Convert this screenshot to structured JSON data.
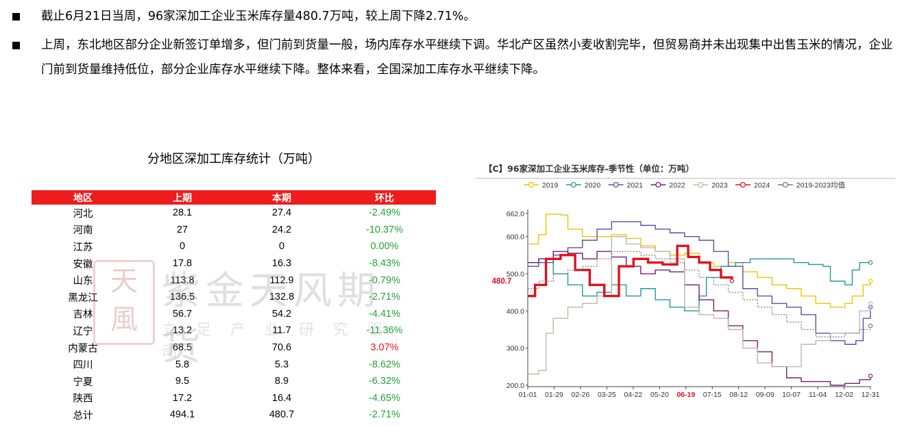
{
  "bullets": [
    "截止6月21日当周，96家深加工企业玉米库存量480.7万吨，较上周下降2.71%。",
    "上周，东北地区部分企业新签订单增多，但门前到货量一般，场内库存水平继续下调。华北产区虽然小麦收割完毕，但贸易商并未出现集中出售玉米的情况，企业门前到货量维持低位，部分企业库存水平继续下降。整体来看，全国深加工库存水平继续下降。"
  ],
  "table": {
    "title": "分地区深加工库存统计（万吨）",
    "headers": [
      "地区",
      "上期",
      "本期",
      "环比"
    ],
    "rows": [
      {
        "region": "河北",
        "prev": "28.1",
        "curr": "27.4",
        "chg": "-2.49%"
      },
      {
        "region": "河南",
        "prev": "27",
        "curr": "24.2",
        "chg": "-10.37%"
      },
      {
        "region": "江苏",
        "prev": "0",
        "curr": "0",
        "chg": "0.00%"
      },
      {
        "region": "安徽",
        "prev": "17.8",
        "curr": "16.3",
        "chg": "-8.43%"
      },
      {
        "region": "山东",
        "prev": "113.8",
        "curr": "112.9",
        "chg": "-0.79%"
      },
      {
        "region": "黑龙江",
        "prev": "136.5",
        "curr": "132.8",
        "chg": "-2.71%"
      },
      {
        "region": "吉林",
        "prev": "56.7",
        "curr": "54.2",
        "chg": "-4.41%"
      },
      {
        "region": "辽宁",
        "prev": "13.2",
        "curr": "11.7",
        "chg": "-11.36%"
      },
      {
        "region": "内蒙古",
        "prev": "68.5",
        "curr": "70.6",
        "chg": "3.07%"
      },
      {
        "region": "四川",
        "prev": "5.8",
        "curr": "5.3",
        "chg": "-8.62%"
      },
      {
        "region": "宁夏",
        "prev": "9.5",
        "curr": "8.9",
        "chg": "-6.32%"
      },
      {
        "region": "陕西",
        "prev": "17.2",
        "curr": "16.4",
        "chg": "-4.65%"
      },
      {
        "region": "总计",
        "prev": "494.1",
        "curr": "480.7",
        "chg": "-2.71%"
      }
    ],
    "colors": {
      "header_bg": "#ee1c1c",
      "negative": "#21a336",
      "positive": "#e8111b"
    }
  },
  "watermark": {
    "seal": "天风",
    "main": "紫金天风期货",
    "sub": "立足产业研究驱动"
  },
  "chart_data": {
    "type": "line",
    "title": "【C】96家深加工企业玉米库存-季节性（单位：万吨）",
    "xlabel": "",
    "ylabel": "",
    "x_ticks": [
      "01-01",
      "01-29",
      "02-26",
      "03-25",
      "04-22",
      "05-20",
      "06-19",
      "07-15",
      "08-12",
      "09-09",
      "10-07",
      "11-04",
      "12-02",
      "12-31"
    ],
    "highlight_tick": "06-19",
    "y_ticks": [
      "662.0",
      "600.0",
      "500.0",
      "400.0",
      "300.0",
      "200.0"
    ],
    "ylim": [
      200,
      662
    ],
    "callout": "480.7",
    "grid": false,
    "legend_position": "top",
    "series": [
      {
        "name": "2019",
        "color": "#f2c200",
        "dashed": false,
        "width": 1.4,
        "points": [
          [
            1,
            580
          ],
          [
            4,
            605
          ],
          [
            6,
            660
          ],
          [
            10,
            658
          ],
          [
            12,
            620
          ],
          [
            16,
            600
          ],
          [
            20,
            600
          ],
          [
            24,
            605
          ],
          [
            28,
            595
          ],
          [
            32,
            575
          ],
          [
            36,
            560
          ],
          [
            40,
            550
          ],
          [
            44,
            555
          ],
          [
            48,
            530
          ],
          [
            52,
            520
          ],
          [
            56,
            530
          ],
          [
            60,
            505
          ],
          [
            64,
            490
          ],
          [
            68,
            470
          ],
          [
            72,
            460
          ],
          [
            76,
            440
          ],
          [
            80,
            420
          ],
          [
            84,
            410
          ],
          [
            88,
            420
          ],
          [
            90,
            440
          ],
          [
            93,
            470
          ],
          [
            95,
            480
          ]
        ]
      },
      {
        "name": "2020",
        "color": "#1e9a96",
        "dashed": false,
        "width": 1.4,
        "points": [
          [
            1,
            530
          ],
          [
            4,
            540
          ],
          [
            8,
            500
          ],
          [
            12,
            470
          ],
          [
            16,
            440
          ],
          [
            20,
            450
          ],
          [
            24,
            470
          ],
          [
            28,
            440
          ],
          [
            32,
            460
          ],
          [
            36,
            430
          ],
          [
            40,
            410
          ],
          [
            44,
            400
          ],
          [
            48,
            440
          ],
          [
            50,
            490
          ],
          [
            54,
            520
          ],
          [
            58,
            530
          ],
          [
            62,
            540
          ],
          [
            66,
            540
          ],
          [
            70,
            540
          ],
          [
            74,
            530
          ],
          [
            78,
            525
          ],
          [
            82,
            520
          ],
          [
            84,
            480
          ],
          [
            88,
            470
          ],
          [
            90,
            510
          ],
          [
            92,
            530
          ],
          [
            95,
            530
          ]
        ]
      },
      {
        "name": "2021",
        "color": "#5b4ea8",
        "dashed": false,
        "width": 1.4,
        "points": [
          [
            1,
            520
          ],
          [
            4,
            530
          ],
          [
            8,
            550
          ],
          [
            12,
            570
          ],
          [
            16,
            590
          ],
          [
            20,
            620
          ],
          [
            24,
            640
          ],
          [
            28,
            640
          ],
          [
            32,
            630
          ],
          [
            36,
            620
          ],
          [
            40,
            610
          ],
          [
            44,
            600
          ],
          [
            48,
            590
          ],
          [
            52,
            560
          ],
          [
            56,
            520
          ],
          [
            60,
            460
          ],
          [
            64,
            440
          ],
          [
            68,
            420
          ],
          [
            72,
            410
          ],
          [
            76,
            390
          ],
          [
            80,
            340
          ],
          [
            84,
            320
          ],
          [
            88,
            310
          ],
          [
            91,
            320
          ],
          [
            93,
            380
          ],
          [
            95,
            410
          ]
        ]
      },
      {
        "name": "2022",
        "color": "#7a1a6a",
        "dashed": false,
        "width": 1.4,
        "points": [
          [
            1,
            530
          ],
          [
            4,
            540
          ],
          [
            8,
            560
          ],
          [
            12,
            555
          ],
          [
            16,
            540
          ],
          [
            20,
            560
          ],
          [
            24,
            545
          ],
          [
            28,
            520
          ],
          [
            32,
            500
          ],
          [
            36,
            510
          ],
          [
            40,
            505
          ],
          [
            44,
            470
          ],
          [
            48,
            430
          ],
          [
            52,
            400
          ],
          [
            56,
            360
          ],
          [
            60,
            320
          ],
          [
            64,
            290
          ],
          [
            68,
            250
          ],
          [
            72,
            220
          ],
          [
            76,
            210
          ],
          [
            80,
            210
          ],
          [
            84,
            200
          ],
          [
            88,
            205
          ],
          [
            92,
            215
          ],
          [
            95,
            225
          ]
        ]
      },
      {
        "name": "2023",
        "color": "#bdb5ad",
        "dashed": false,
        "width": 1.4,
        "points": [
          [
            1,
            230
          ],
          [
            4,
            240
          ],
          [
            6,
            340
          ],
          [
            8,
            380
          ],
          [
            12,
            410
          ],
          [
            16,
            420
          ],
          [
            20,
            440
          ],
          [
            24,
            600
          ],
          [
            28,
            580
          ],
          [
            32,
            570
          ],
          [
            36,
            560
          ],
          [
            40,
            540
          ],
          [
            44,
            410
          ],
          [
            48,
            390
          ],
          [
            52,
            380
          ],
          [
            56,
            350
          ],
          [
            60,
            300
          ],
          [
            64,
            260
          ],
          [
            68,
            250
          ],
          [
            72,
            250
          ],
          [
            76,
            310
          ],
          [
            80,
            320
          ],
          [
            84,
            340
          ],
          [
            88,
            340
          ],
          [
            92,
            400
          ],
          [
            95,
            420
          ]
        ]
      },
      {
        "name": "2024",
        "color": "#e0101e",
        "dashed": false,
        "width": 3.4,
        "points": [
          [
            1,
            440
          ],
          [
            3,
            470
          ],
          [
            6,
            540
          ],
          [
            10,
            550
          ],
          [
            14,
            510
          ],
          [
            18,
            470
          ],
          [
            22,
            440
          ],
          [
            26,
            520
          ],
          [
            30,
            540
          ],
          [
            34,
            530
          ],
          [
            38,
            525
          ],
          [
            42,
            575
          ],
          [
            45,
            545
          ],
          [
            48,
            530
          ],
          [
            51,
            510
          ],
          [
            54,
            490
          ],
          [
            57,
            480.7
          ]
        ]
      },
      {
        "name": "2019-2023均值",
        "color": "#777777",
        "dashed": true,
        "width": 1.2,
        "points": [
          [
            1,
            460
          ],
          [
            4,
            480
          ],
          [
            8,
            500
          ],
          [
            12,
            510
          ],
          [
            16,
            520
          ],
          [
            20,
            540
          ],
          [
            24,
            560
          ],
          [
            28,
            560
          ],
          [
            32,
            550
          ],
          [
            36,
            540
          ],
          [
            40,
            530
          ],
          [
            44,
            510
          ],
          [
            48,
            490
          ],
          [
            52,
            470
          ],
          [
            56,
            450
          ],
          [
            60,
            430
          ],
          [
            64,
            410
          ],
          [
            68,
            390
          ],
          [
            72,
            370
          ],
          [
            76,
            350
          ],
          [
            80,
            330
          ],
          [
            84,
            330
          ],
          [
            88,
            340
          ],
          [
            92,
            350
          ],
          [
            95,
            360
          ]
        ]
      }
    ]
  }
}
